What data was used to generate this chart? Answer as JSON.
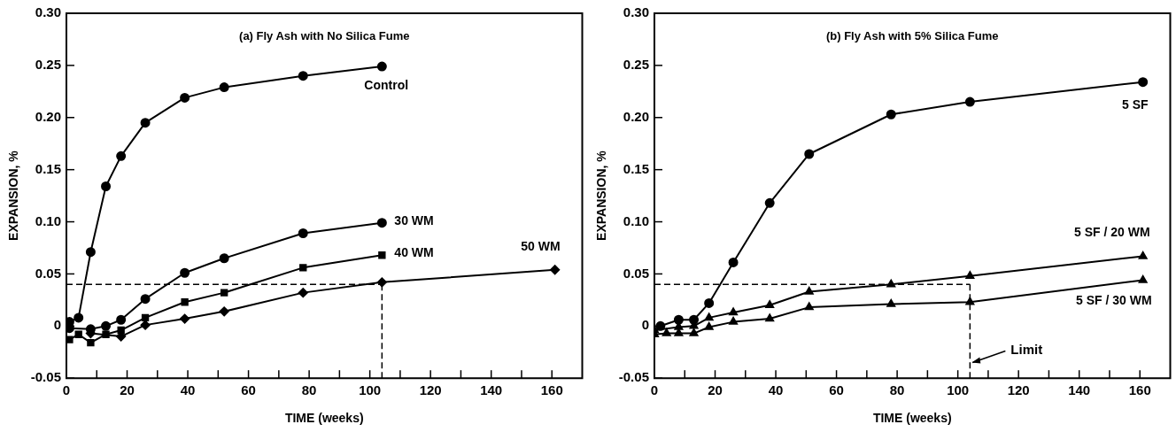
{
  "chart_data": [
    {
      "type": "line",
      "title": "(a) Fly Ash with No Silica Fume",
      "xlabel": "TIME (weeks)",
      "ylabel": "EXPANSION, %",
      "xlim": [
        0,
        170
      ],
      "ylim": [
        -0.05,
        0.3
      ],
      "xticks": [
        0,
        {
          "value": 10,
          "label": null
        },
        20,
        {
          "value": 30,
          "label": null
        },
        40,
        {
          "value": 50,
          "label": null
        },
        60,
        {
          "value": 70,
          "label": null
        },
        80,
        {
          "value": 90,
          "label": null
        },
        100,
        {
          "value": 110,
          "label": null
        },
        120,
        {
          "value": 130,
          "label": null
        },
        140,
        {
          "value": 150,
          "label": null
        },
        160
      ],
      "yticks": [
        {
          "value": -0.05,
          "label": "-0.05"
        },
        0,
        {
          "value": 0.05,
          "label": "0.05"
        },
        {
          "value": 0.1,
          "label": "0.10"
        },
        {
          "value": 0.15,
          "label": "0.15"
        },
        {
          "value": 0.2,
          "label": "0.20"
        },
        {
          "value": 0.25,
          "label": "0.25"
        },
        {
          "value": 0.3,
          "label": "0.30"
        }
      ],
      "series": [
        {
          "name": "Control",
          "color": "#000000",
          "marker": "circle",
          "x": [
            0,
            1,
            4,
            8,
            13,
            18,
            26,
            39,
            52,
            78,
            104
          ],
          "values": [
            0.001,
            0.004,
            0.008,
            0.071,
            0.134,
            0.163,
            0.195,
            0.219,
            0.229,
            0.24,
            0.249
          ]
        },
        {
          "name": "30 WM",
          "color": "#000000",
          "marker": "circle",
          "x": [
            0,
            1,
            8,
            13,
            18,
            26,
            39,
            52,
            78,
            104
          ],
          "values": [
            0,
            -0.002,
            -0.003,
            0,
            0.006,
            0.026,
            0.051,
            0.065,
            0.089,
            0.099
          ]
        },
        {
          "name": "40 WM",
          "color": "#000000",
          "marker": "square",
          "x": [
            1,
            4,
            8,
            13,
            18,
            26,
            39,
            52,
            78,
            104
          ],
          "values": [
            -0.013,
            -0.008,
            -0.016,
            -0.008,
            -0.004,
            0.008,
            0.023,
            0.032,
            0.056,
            0.068
          ]
        },
        {
          "name": "50 WM",
          "color": "#000000",
          "marker": "diamond",
          "x": [
            8,
            18,
            26,
            39,
            52,
            78,
            104,
            161
          ],
          "values": [
            -0.007,
            -0.01,
            0.001,
            0.007,
            0.014,
            0.032,
            0.042,
            0.054
          ]
        }
      ],
      "ref_lines": [
        {
          "axis": "y",
          "value": 0.04,
          "line_style": "dashed"
        },
        {
          "axis": "x",
          "value": 104,
          "line_style": "dashed"
        }
      ],
      "legend": false
    },
    {
      "type": "line",
      "title": "(b) Fly Ash with 5% Silica Fume",
      "xlabel": "TIME (weeks)",
      "ylabel": "EXPANSION, %",
      "xlim": [
        0,
        170
      ],
      "ylim": [
        -0.05,
        0.3
      ],
      "xticks": [
        0,
        {
          "value": 10,
          "label": null
        },
        20,
        {
          "value": 30,
          "label": null
        },
        40,
        {
          "value": 50,
          "label": null
        },
        60,
        {
          "value": 70,
          "label": null
        },
        80,
        {
          "value": 90,
          "label": null
        },
        100,
        {
          "value": 110,
          "label": null
        },
        120,
        {
          "value": 130,
          "label": null
        },
        140,
        {
          "value": 150,
          "label": null
        },
        160
      ],
      "yticks": [
        {
          "value": -0.05,
          "label": "-0.05"
        },
        0,
        {
          "value": 0.05,
          "label": "0.05"
        },
        {
          "value": 0.1,
          "label": "0.10"
        },
        {
          "value": 0.15,
          "label": "0.15"
        },
        {
          "value": 0.2,
          "label": "0.20"
        },
        {
          "value": 0.25,
          "label": "0.25"
        },
        {
          "value": 0.3,
          "label": "0.30"
        }
      ],
      "series": [
        {
          "name": "5 SF",
          "color": "#000000",
          "marker": "circle",
          "x": [
            2,
            8,
            13,
            18,
            26,
            38,
            51,
            78,
            104,
            161
          ],
          "values": [
            0,
            0.006,
            0.006,
            0.022,
            0.061,
            0.118,
            0.165,
            0.203,
            0.215,
            0.234
          ]
        },
        {
          "name": "5 SF / 20 WM",
          "color": "#000000",
          "marker": "triangle",
          "x": [
            0,
            8,
            13,
            18,
            26,
            38,
            51,
            78,
            104,
            161
          ],
          "values": [
            -0.004,
            -0.001,
            0,
            0.008,
            0.013,
            0.02,
            0.033,
            0.04,
            0.048,
            0.067
          ]
        },
        {
          "name": "5 SF / 30 WM",
          "color": "#000000",
          "marker": "triangle",
          "x": [
            0,
            4,
            8,
            13,
            18,
            26,
            38,
            51,
            78,
            104,
            161
          ],
          "values": [
            -0.008,
            -0.007,
            -0.007,
            -0.007,
            -0.001,
            0.004,
            0.007,
            0.018,
            0.021,
            0.023,
            0.044
          ]
        }
      ],
      "ref_lines": [
        {
          "axis": "y",
          "value": 0.04,
          "line_style": "dashed"
        },
        {
          "axis": "x",
          "value": 104,
          "line_style": "dashed"
        }
      ],
      "annotations": [
        {
          "text": "Limit",
          "x": 104,
          "y": -0.035
        }
      ],
      "legend": false
    }
  ]
}
